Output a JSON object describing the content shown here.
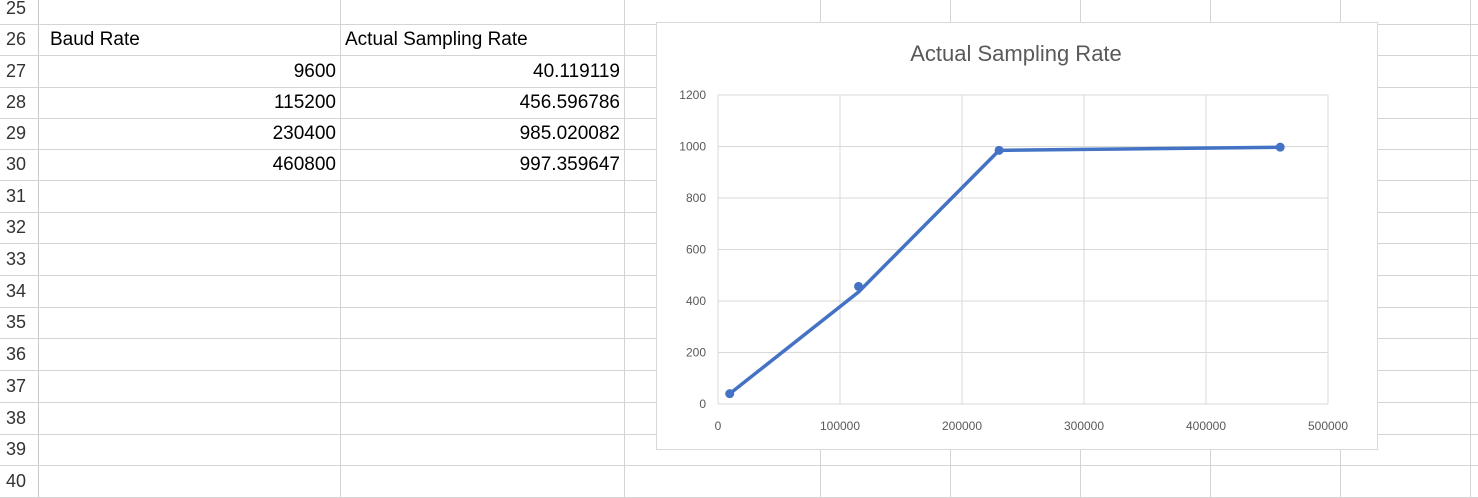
{
  "spreadsheet": {
    "row_numbers": [
      "25",
      "26",
      "27",
      "28",
      "29",
      "30",
      "31",
      "32",
      "33",
      "34",
      "35",
      "36",
      "37",
      "38",
      "39",
      "40"
    ],
    "headers": {
      "baud_rate": "Baud Rate",
      "actual_sampling_rate": "Actual Sampling Rate"
    },
    "rows": [
      {
        "baud": "9600",
        "rate": "40.119119"
      },
      {
        "baud": "115200",
        "rate": "456.596786"
      },
      {
        "baud": "230400",
        "rate": "985.020082"
      },
      {
        "baud": "460800",
        "rate": "997.359647"
      }
    ]
  },
  "chart_data": {
    "type": "scatter",
    "title": "Actual Sampling Rate",
    "xlabel": "",
    "ylabel": "",
    "xlim": [
      0,
      500000
    ],
    "ylim": [
      0,
      1200
    ],
    "x_ticks": [
      "0",
      "100000",
      "200000",
      "300000",
      "400000",
      "500000"
    ],
    "y_ticks": [
      "0",
      "200",
      "400",
      "600",
      "800",
      "1000",
      "1200"
    ],
    "grid": true,
    "line_color": "#4472C4",
    "series": [
      {
        "name": "",
        "x": [
          9600,
          115200,
          230400,
          460800
        ],
        "y": [
          40.119119,
          456.596786,
          985.020082,
          997.359647
        ]
      }
    ],
    "trendline": {
      "x": [
        9600,
        115200,
        230400,
        460800
      ],
      "y": [
        40,
        435,
        985,
        997
      ]
    }
  }
}
